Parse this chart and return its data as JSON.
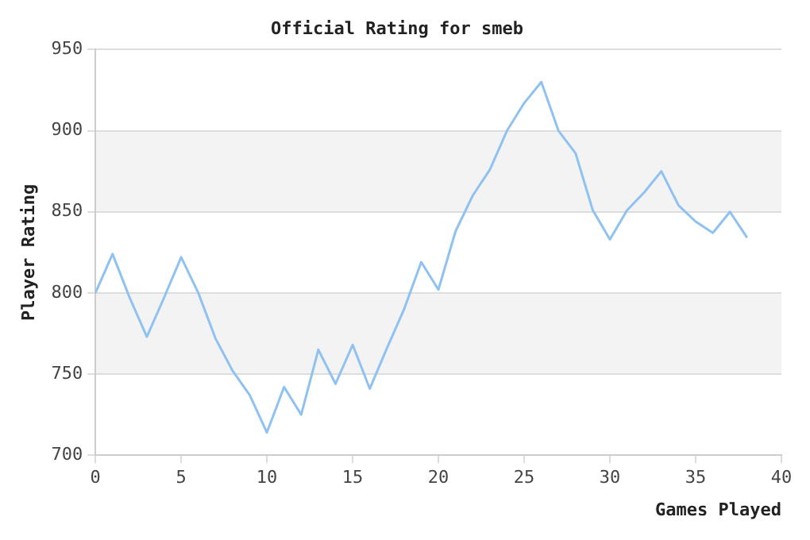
{
  "chart_data": {
    "type": "line",
    "title": "Official Rating for smeb",
    "xlabel": "Games Played",
    "ylabel": "Player Rating",
    "x": [
      0,
      1,
      2,
      3,
      4,
      5,
      6,
      7,
      8,
      9,
      10,
      11,
      12,
      13,
      14,
      15,
      16,
      17,
      18,
      19,
      20,
      21,
      22,
      23,
      24,
      25,
      26,
      27,
      28,
      29,
      30,
      31,
      32,
      33,
      34,
      35,
      36,
      37,
      38
    ],
    "series": [
      {
        "color": "#8fc1f2",
        "values": [
          800,
          824,
          797,
          773,
          797,
          822,
          800,
          772,
          752,
          737,
          714,
          742,
          725,
          765,
          744,
          768,
          741,
          766,
          790,
          819,
          802,
          838,
          860,
          876,
          900,
          917,
          930,
          900,
          886,
          851,
          833,
          851,
          862,
          875,
          854,
          844,
          837,
          850,
          834
        ]
      }
    ],
    "xlim": [
      0,
      40
    ],
    "xticks": [
      0,
      5,
      10,
      15,
      20,
      25,
      30,
      35,
      40
    ],
    "ylim": [
      700,
      950
    ],
    "yticks": [
      700,
      750,
      800,
      850,
      900,
      950
    ],
    "grid": "y",
    "legend": false,
    "marker": "none",
    "line_style": "solid"
  }
}
